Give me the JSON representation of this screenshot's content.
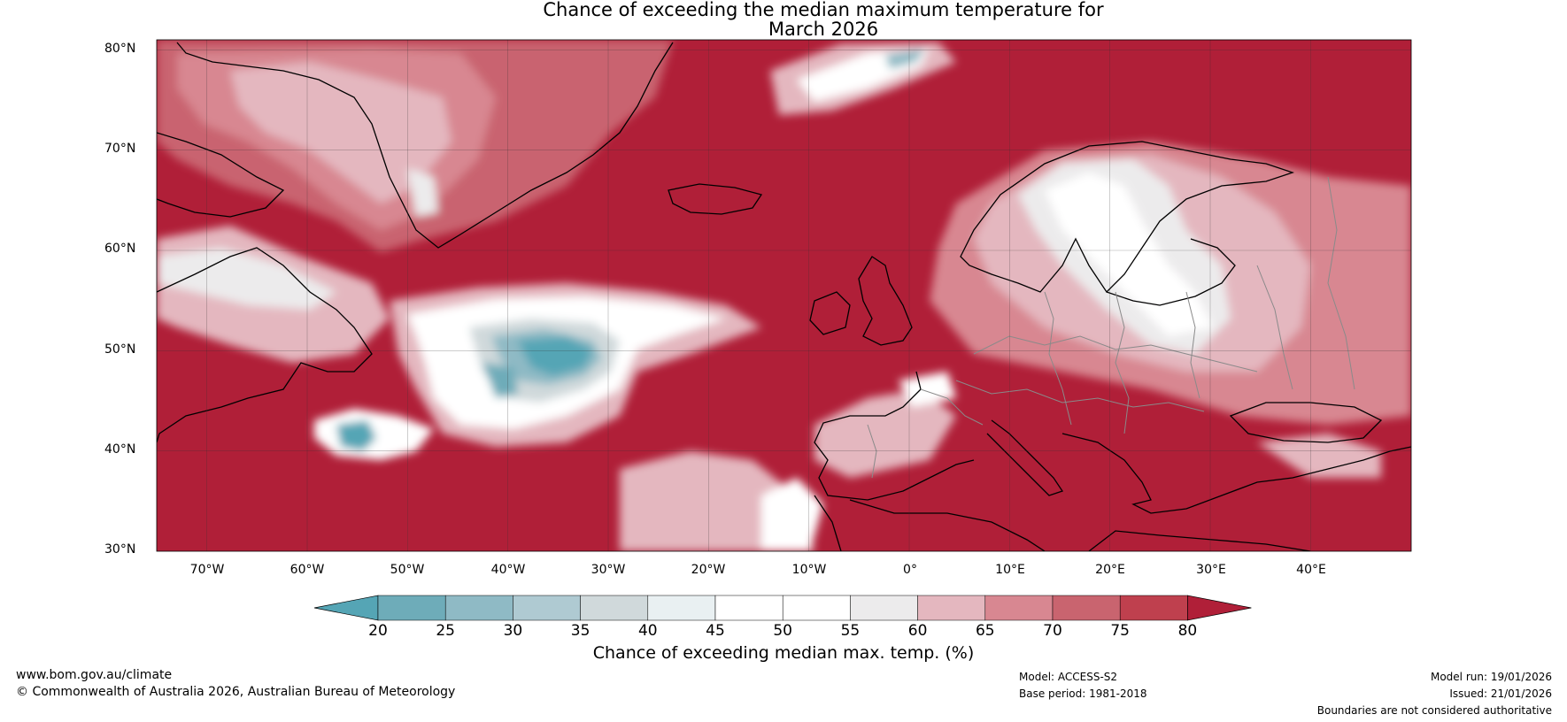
{
  "title": {
    "line1": "Chance of exceeding the median maximum temperature for",
    "line2": "March 2026"
  },
  "map": {
    "lat_labels": [
      "80°N",
      "70°N",
      "60°N",
      "50°N",
      "40°N",
      "30°N"
    ],
    "lon_labels": [
      "70°W",
      "60°W",
      "50°W",
      "40°W",
      "30°W",
      "20°W",
      "10°W",
      "0°",
      "10°E",
      "20°E",
      "30°E",
      "40°E"
    ],
    "lat_range": [
      30,
      81
    ],
    "lon_range": [
      -75,
      50
    ]
  },
  "colorbar": {
    "ticks": [
      "20",
      "25",
      "30",
      "35",
      "40",
      "45",
      "50",
      "55",
      "60",
      "65",
      "70",
      "75",
      "80"
    ],
    "colors": [
      "#55a5b5",
      "#6eacb9",
      "#8fbac5",
      "#afcad2",
      "#d0d9db",
      "#e9f0f2",
      "#ffffff",
      "#ffffff",
      "#ecebec",
      "#e4b7bf",
      "#d88791",
      "#c9646f",
      "#bf404e",
      "#b01f38"
    ],
    "label": "Chance of exceeding median max. temp. (%)"
  },
  "footer": {
    "url": "www.bom.gov.au/climate",
    "copyright": "© Commonwealth of Australia 2026, Australian Bureau of Meteorology",
    "model": "Model: ACCESS-S2",
    "base_period": "Base period: 1981-2018",
    "model_run": "Model run: 19/01/2026",
    "issued": "Issued: 21/01/2026",
    "disclaimer": "Boundaries are not considered authoritative"
  }
}
